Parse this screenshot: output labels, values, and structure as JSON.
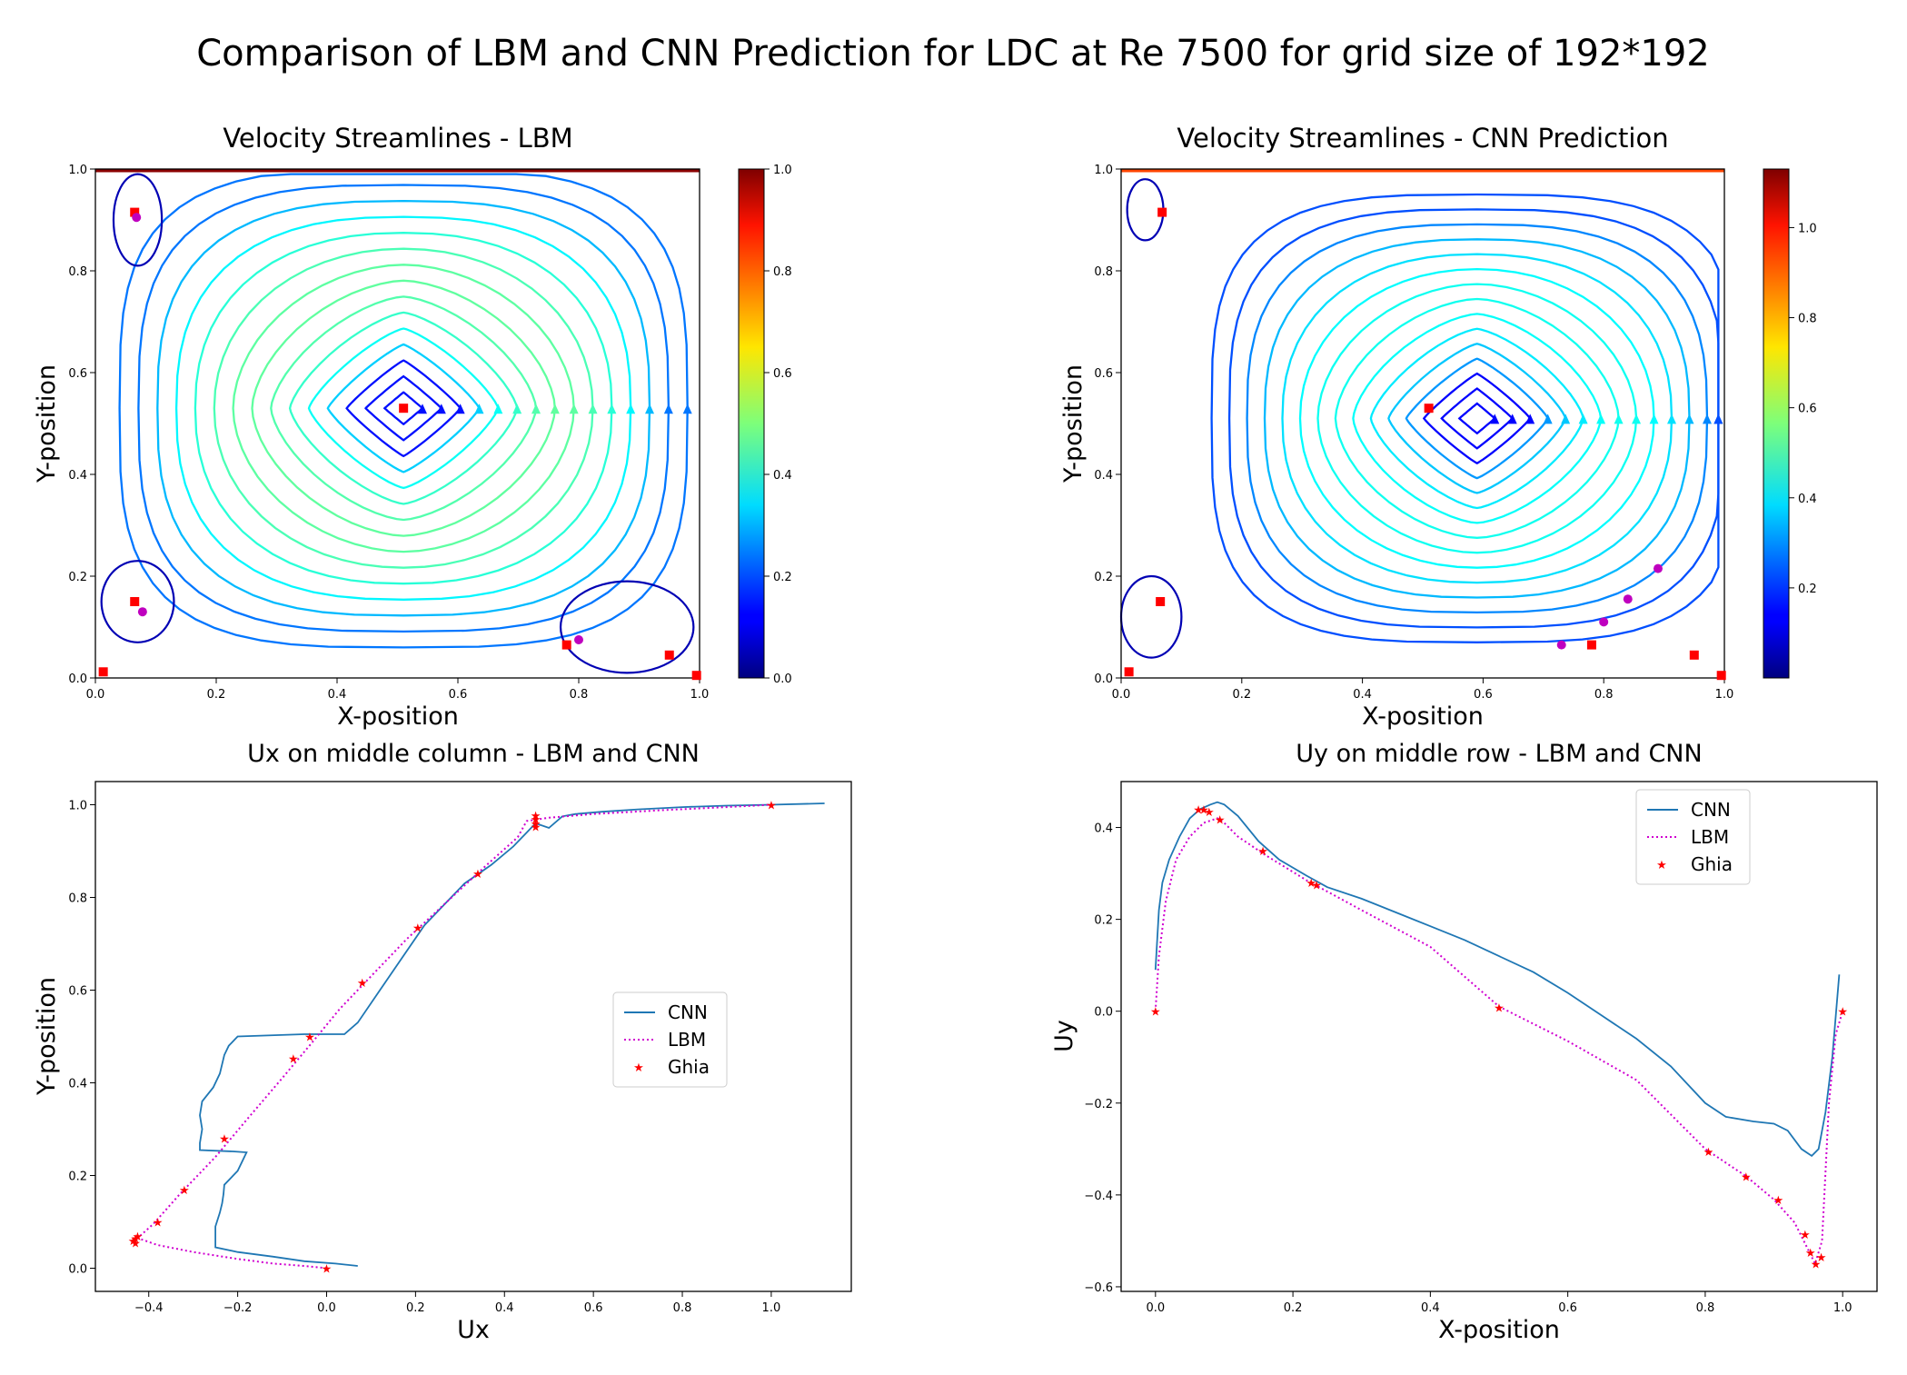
{
  "figure": {
    "suptitle": "Comparison of LBM and CNN Prediction for LDC at Re 7500 for grid size of 192*192"
  },
  "chart_data": [
    {
      "type": "streamplot",
      "title": "Velocity Streamlines - LBM",
      "xlabel": "X-position",
      "ylabel": "Y-position",
      "xlim": [
        0,
        1
      ],
      "ylim": [
        0,
        1
      ],
      "xticks": [
        "0.0",
        "0.2",
        "0.4",
        "0.6",
        "0.8",
        "1.0"
      ],
      "yticks": [
        "0.0",
        "0.2",
        "0.4",
        "0.6",
        "0.8",
        "1.0"
      ],
      "colorbar": {
        "colormap": "jet",
        "range": [
          0,
          1.0
        ],
        "ticks": [
          "0.0",
          "0.2",
          "0.4",
          "0.6",
          "0.8",
          "1.0"
        ]
      },
      "vortex_center": [
        0.51,
        0.53
      ],
      "red_square_markers": [
        [
          0.065,
          0.915
        ],
        [
          0.51,
          0.53
        ],
        [
          0.065,
          0.15
        ],
        [
          0.013,
          0.012
        ],
        [
          0.78,
          0.065
        ],
        [
          0.95,
          0.045
        ],
        [
          0.995,
          0.005
        ]
      ],
      "magenta_circle_markers": [
        [
          0.068,
          0.905
        ],
        [
          0.078,
          0.13
        ],
        [
          0.8,
          0.075
        ]
      ]
    },
    {
      "type": "streamplot",
      "title": "Velocity Streamlines - CNN Prediction",
      "xlabel": "X-position",
      "ylabel": "Y-position",
      "xlim": [
        0,
        1
      ],
      "ylim": [
        0,
        1
      ],
      "xticks": [
        "0.0",
        "0.2",
        "0.4",
        "0.6",
        "0.8",
        "1.0"
      ],
      "yticks": [
        "0.0",
        "0.2",
        "0.4",
        "0.6",
        "0.8",
        "1.0"
      ],
      "colorbar": {
        "colormap": "jet",
        "range": [
          0,
          1.13
        ],
        "ticks": [
          "0.2",
          "0.4",
          "0.6",
          "0.8",
          "1.0"
        ]
      },
      "vortex_center": [
        0.59,
        0.51
      ],
      "red_square_markers": [
        [
          0.068,
          0.915
        ],
        [
          0.51,
          0.53
        ],
        [
          0.065,
          0.15
        ],
        [
          0.013,
          0.012
        ],
        [
          0.78,
          0.065
        ],
        [
          0.95,
          0.045
        ],
        [
          0.995,
          0.005
        ]
      ],
      "magenta_circle_markers": [
        [
          0.73,
          0.065
        ],
        [
          0.8,
          0.11
        ],
        [
          0.84,
          0.155
        ],
        [
          0.89,
          0.215
        ]
      ]
    },
    {
      "type": "line",
      "title": "Ux on middle column - LBM and CNN",
      "xlabel": "Ux",
      "ylabel": "Y-position",
      "xlim": [
        -0.52,
        1.18
      ],
      "ylim": [
        -0.05,
        1.05
      ],
      "xticks": [
        -0.4,
        -0.2,
        0.0,
        0.2,
        0.4,
        0.6,
        0.8,
        1.0
      ],
      "xtick_labels": [
        "−0.4",
        "−0.2",
        "0.0",
        "0.2",
        "0.4",
        "0.6",
        "0.8",
        "1.0"
      ],
      "yticks": [
        0.0,
        0.2,
        0.4,
        0.6,
        0.8,
        1.0
      ],
      "ytick_labels": [
        "0.0",
        "0.2",
        "0.4",
        "0.6",
        "0.8",
        "1.0"
      ],
      "legend": {
        "position": "center-right",
        "entries": [
          "CNN",
          "LBM",
          "Ghia"
        ]
      },
      "series": [
        {
          "name": "CNN",
          "style": "solid",
          "color": "#1f77b4",
          "points": [
            [
              0.07,
              0.005
            ],
            [
              0.02,
              0.01
            ],
            [
              -0.05,
              0.015
            ],
            [
              -0.12,
              0.025
            ],
            [
              -0.2,
              0.035
            ],
            [
              -0.25,
              0.045
            ],
            [
              -0.25,
              0.07
            ],
            [
              -0.25,
              0.09
            ],
            [
              -0.24,
              0.12
            ],
            [
              -0.235,
              0.14
            ],
            [
              -0.232,
              0.16
            ],
            [
              -0.23,
              0.18
            ],
            [
              -0.2,
              0.21
            ],
            [
              -0.19,
              0.23
            ],
            [
              -0.18,
              0.25
            ],
            [
              -0.21,
              0.252
            ],
            [
              -0.285,
              0.255
            ],
            [
              -0.285,
              0.27
            ],
            [
              -0.28,
              0.3
            ],
            [
              -0.285,
              0.33
            ],
            [
              -0.28,
              0.36
            ],
            [
              -0.255,
              0.39
            ],
            [
              -0.24,
              0.42
            ],
            [
              -0.23,
              0.46
            ],
            [
              -0.22,
              0.48
            ],
            [
              -0.2,
              0.5
            ],
            [
              -0.05,
              0.505
            ],
            [
              0.04,
              0.505
            ],
            [
              0.07,
              0.53
            ],
            [
              0.12,
              0.6
            ],
            [
              0.17,
              0.67
            ],
            [
              0.22,
              0.74
            ],
            [
              0.26,
              0.78
            ],
            [
              0.31,
              0.83
            ],
            [
              0.37,
              0.87
            ],
            [
              0.42,
              0.91
            ],
            [
              0.45,
              0.94
            ],
            [
              0.47,
              0.96
            ],
            [
              0.5,
              0.95
            ],
            [
              0.53,
              0.975
            ],
            [
              0.56,
              0.98
            ],
            [
              0.62,
              0.985
            ],
            [
              0.7,
              0.99
            ],
            [
              0.8,
              0.995
            ],
            [
              0.9,
              0.998
            ],
            [
              1.0,
              1.0
            ],
            [
              1.12,
              1.003
            ]
          ]
        },
        {
          "name": "LBM",
          "style": "dotted",
          "color": "#d000d0",
          "points": [
            [
              0.0,
              0.0
            ],
            [
              -0.05,
              0.005
            ],
            [
              -0.12,
              0.01
            ],
            [
              -0.2,
              0.02
            ],
            [
              -0.3,
              0.035
            ],
            [
              -0.38,
              0.05
            ],
            [
              -0.425,
              0.065
            ],
            [
              -0.39,
              0.095
            ],
            [
              -0.33,
              0.16
            ],
            [
              -0.25,
              0.24
            ],
            [
              -0.18,
              0.32
            ],
            [
              -0.1,
              0.41
            ],
            [
              -0.03,
              0.49
            ],
            [
              0.03,
              0.56
            ],
            [
              0.1,
              0.63
            ],
            [
              0.18,
              0.71
            ],
            [
              0.27,
              0.79
            ],
            [
              0.36,
              0.87
            ],
            [
              0.43,
              0.93
            ],
            [
              0.45,
              0.965
            ],
            [
              0.5,
              0.972
            ],
            [
              0.6,
              0.98
            ],
            [
              0.75,
              0.988
            ],
            [
              0.9,
              0.995
            ],
            [
              1.0,
              1.0
            ]
          ]
        },
        {
          "name": "Ghia",
          "style": "marker",
          "color": "#ff0000",
          "points": [
            [
              0.0,
              0.0
            ],
            [
              -0.43,
              0.055
            ],
            [
              -0.435,
              0.06
            ],
            [
              -0.43,
              0.065
            ],
            [
              -0.425,
              0.07
            ],
            [
              -0.38,
              0.1
            ],
            [
              -0.32,
              0.17
            ],
            [
              -0.23,
              0.28
            ],
            [
              -0.075,
              0.453
            ],
            [
              -0.038,
              0.5
            ],
            [
              0.08,
              0.617
            ],
            [
              0.205,
              0.735
            ],
            [
              0.34,
              0.852
            ],
            [
              0.47,
              0.953
            ],
            [
              0.47,
              0.96
            ],
            [
              0.47,
              0.97
            ],
            [
              0.47,
              0.977
            ],
            [
              1.0,
              1.0
            ]
          ]
        }
      ]
    },
    {
      "type": "line",
      "title": "Uy on middle row - LBM and CNN",
      "xlabel": "X-position",
      "ylabel": "Uy",
      "xlim": [
        -0.05,
        1.05
      ],
      "ylim": [
        -0.61,
        0.5
      ],
      "xticks": [
        0.0,
        0.2,
        0.4,
        0.6,
        0.8,
        1.0
      ],
      "xtick_labels": [
        "0.0",
        "0.2",
        "0.4",
        "0.6",
        "0.8",
        "1.0"
      ],
      "yticks": [
        -0.6,
        -0.4,
        -0.2,
        0.0,
        0.2,
        0.4
      ],
      "ytick_labels": [
        "−0.6",
        "−0.4",
        "−0.2",
        "0.0",
        "0.2",
        "0.4"
      ],
      "legend": {
        "position": "top-right",
        "entries": [
          "CNN",
          "LBM",
          "Ghia"
        ]
      },
      "series": [
        {
          "name": "CNN",
          "style": "solid",
          "color": "#1f77b4",
          "points": [
            [
              0.0,
              0.09
            ],
            [
              0.005,
              0.22
            ],
            [
              0.01,
              0.28
            ],
            [
              0.02,
              0.33
            ],
            [
              0.035,
              0.38
            ],
            [
              0.05,
              0.42
            ],
            [
              0.065,
              0.44
            ],
            [
              0.08,
              0.45
            ],
            [
              0.09,
              0.455
            ],
            [
              0.1,
              0.45
            ],
            [
              0.12,
              0.425
            ],
            [
              0.15,
              0.37
            ],
            [
              0.18,
              0.33
            ],
            [
              0.22,
              0.295
            ],
            [
              0.25,
              0.27
            ],
            [
              0.3,
              0.245
            ],
            [
              0.35,
              0.215
            ],
            [
              0.4,
              0.185
            ],
            [
              0.45,
              0.155
            ],
            [
              0.5,
              0.12
            ],
            [
              0.55,
              0.085
            ],
            [
              0.6,
              0.04
            ],
            [
              0.65,
              -0.01
            ],
            [
              0.7,
              -0.06
            ],
            [
              0.75,
              -0.12
            ],
            [
              0.8,
              -0.2
            ],
            [
              0.83,
              -0.23
            ],
            [
              0.87,
              -0.24
            ],
            [
              0.9,
              -0.245
            ],
            [
              0.92,
              -0.26
            ],
            [
              0.94,
              -0.3
            ],
            [
              0.955,
              -0.315
            ],
            [
              0.965,
              -0.3
            ],
            [
              0.975,
              -0.22
            ],
            [
              0.985,
              -0.1
            ],
            [
              0.995,
              0.08
            ]
          ]
        },
        {
          "name": "LBM",
          "style": "dotted",
          "color": "#d000d0",
          "points": [
            [
              0.0,
              0.0
            ],
            [
              0.005,
              0.12
            ],
            [
              0.015,
              0.24
            ],
            [
              0.03,
              0.33
            ],
            [
              0.05,
              0.38
            ],
            [
              0.07,
              0.41
            ],
            [
              0.09,
              0.42
            ],
            [
              0.1,
              0.41
            ],
            [
              0.12,
              0.38
            ],
            [
              0.16,
              0.34
            ],
            [
              0.22,
              0.285
            ],
            [
              0.3,
              0.22
            ],
            [
              0.4,
              0.14
            ],
            [
              0.5,
              0.01
            ],
            [
              0.6,
              -0.065
            ],
            [
              0.7,
              -0.15
            ],
            [
              0.8,
              -0.3
            ],
            [
              0.86,
              -0.36
            ],
            [
              0.9,
              -0.41
            ],
            [
              0.93,
              -0.46
            ],
            [
              0.95,
              -0.52
            ],
            [
              0.96,
              -0.55
            ],
            [
              0.97,
              -0.5
            ],
            [
              0.98,
              -0.2
            ],
            [
              0.99,
              -0.05
            ],
            [
              1.0,
              0.0
            ]
          ]
        },
        {
          "name": "Ghia",
          "style": "marker",
          "color": "#ff0000",
          "points": [
            [
              0.0,
              0.0
            ],
            [
              0.0625,
              0.44
            ],
            [
              0.0703,
              0.44
            ],
            [
              0.0781,
              0.435
            ],
            [
              0.0938,
              0.418
            ],
            [
              0.1563,
              0.35
            ],
            [
              0.2266,
              0.28
            ],
            [
              0.2344,
              0.275
            ],
            [
              0.5,
              0.008
            ],
            [
              0.8047,
              -0.305
            ],
            [
              0.8594,
              -0.36
            ],
            [
              0.9063,
              -0.41
            ],
            [
              0.9453,
              -0.485
            ],
            [
              0.9531,
              -0.525
            ],
            [
              0.9609,
              -0.55
            ],
            [
              0.9688,
              -0.535
            ],
            [
              1.0,
              0.0
            ]
          ]
        }
      ]
    }
  ]
}
